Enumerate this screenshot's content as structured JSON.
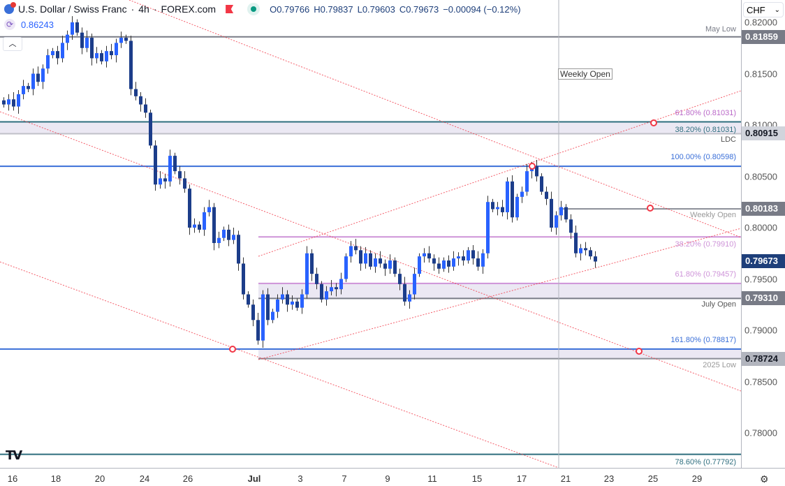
{
  "header": {
    "symbol": "U.S. Dollar / Swiss Franc",
    "interval": "4h",
    "exchange": "FOREX.com",
    "open": "O0.79766",
    "high": "H0.79837",
    "low": "L0.79603",
    "close": "C0.79673",
    "change": "−0.00094 (−0.12%)"
  },
  "indicator": {
    "value": "0.86243"
  },
  "currency": "CHF",
  "colors": {
    "up": "#2962ff",
    "down": "#1c3d8a",
    "fib_purple": "#ce93d8",
    "fib_blue": "#3a6fd8",
    "fib_teal": "#2e6e7e",
    "level_gray": "#787b86",
    "trend_red": "#f23645"
  },
  "price_axis": [
    "0.82000",
    "0.81500",
    "0.81000",
    "0.80500",
    "0.80000",
    "0.79500",
    "0.79000",
    "0.78500",
    "0.78000"
  ],
  "price_tags": [
    {
      "value": "0.81859",
      "bg": "#787b86",
      "fg": "#fff"
    },
    {
      "value": "0.80915",
      "bg": "#d1d4dc",
      "fg": "#131722"
    },
    {
      "value": "0.80183",
      "bg": "#787b86",
      "fg": "#fff"
    },
    {
      "value": "0.79673",
      "bg": "#1e3f7a",
      "fg": "#fff"
    },
    {
      "value": "0.79310",
      "bg": "#787b86",
      "fg": "#fff"
    },
    {
      "value": "0.78724",
      "bg": "#b2b5be",
      "fg": "#131722"
    }
  ],
  "time_axis": [
    "16",
    "18",
    "20",
    "24",
    "26",
    "Jul",
    "3",
    "7",
    "9",
    "11",
    "15",
    "17",
    "21",
    "23",
    "25",
    "29"
  ],
  "levels": [
    {
      "label": "May Low",
      "price": 0.81859,
      "color": "#787b86"
    },
    {
      "label": "61.80% (0.81031)",
      "price": 0.81031,
      "color": "#ba68c8"
    },
    {
      "label": "38.20% (0.81031)",
      "price": 0.81031,
      "color": "#2e6e7e"
    },
    {
      "label": "LDC",
      "price": 0.80915,
      "color": "#555"
    },
    {
      "label": "100.00% (0.80598)",
      "price": 0.80598,
      "color": "#3a6fd8"
    },
    {
      "label": "Weekly Open",
      "price": 0.80183,
      "color": "#999"
    },
    {
      "label": "38.20% (0.79910)",
      "price": 0.7991,
      "color": "#ce93d8"
    },
    {
      "label": "61.80% (0.79457)",
      "price": 0.79457,
      "color": "#ce93d8"
    },
    {
      "label": "July Open",
      "price": 0.7931,
      "color": "#555"
    },
    {
      "label": "161.80% (0.78817)",
      "price": 0.78817,
      "color": "#3a6fd8"
    },
    {
      "label": "2025 Low",
      "price": 0.78724,
      "color": "#999"
    },
    {
      "label": "78.60% (0.77792)",
      "price": 0.77792,
      "color": "#2e6e7e"
    }
  ],
  "weekly_open_marker": "Weekly Open",
  "closes": [
    0.812,
    0.8125,
    0.8118,
    0.813,
    0.8138,
    0.8135,
    0.815,
    0.8142,
    0.8155,
    0.8168,
    0.8172,
    0.8165,
    0.818,
    0.8188,
    0.82,
    0.819,
    0.8175,
    0.8185,
    0.8165,
    0.817,
    0.8162,
    0.8172,
    0.8168,
    0.818,
    0.8185,
    0.8182,
    0.8135,
    0.8128,
    0.812,
    0.8112,
    0.808,
    0.8042,
    0.8048,
    0.8045,
    0.807,
    0.8055,
    0.8048,
    0.8038,
    0.8,
    0.8003,
    0.7998,
    0.8015,
    0.802,
    0.7985,
    0.799,
    0.7998,
    0.7988,
    0.7993,
    0.7965,
    0.7935,
    0.7925,
    0.791,
    0.789,
    0.7935,
    0.791,
    0.7918,
    0.793,
    0.7935,
    0.7925,
    0.7928,
    0.7922,
    0.7935,
    0.7975,
    0.7955,
    0.7945,
    0.793,
    0.7938,
    0.7942,
    0.794,
    0.795,
    0.7972,
    0.7982,
    0.7978,
    0.7965,
    0.7975,
    0.7962,
    0.797,
    0.7965,
    0.796,
    0.7968,
    0.7955,
    0.7945,
    0.7928,
    0.7935,
    0.7955,
    0.7972,
    0.7975,
    0.797,
    0.7965,
    0.796,
    0.7968,
    0.7962,
    0.797,
    0.7972,
    0.7968,
    0.7978,
    0.797,
    0.7962,
    0.7975,
    0.8025,
    0.8018,
    0.802,
    0.8015,
    0.8045,
    0.801,
    0.803,
    0.8035,
    0.8055,
    0.806,
    0.805,
    0.8035,
    0.8028,
    0.8,
    0.8012,
    0.802,
    0.8008,
    0.7995,
    0.7975,
    0.798,
    0.7978,
    0.7972,
    0.7967
  ]
}
